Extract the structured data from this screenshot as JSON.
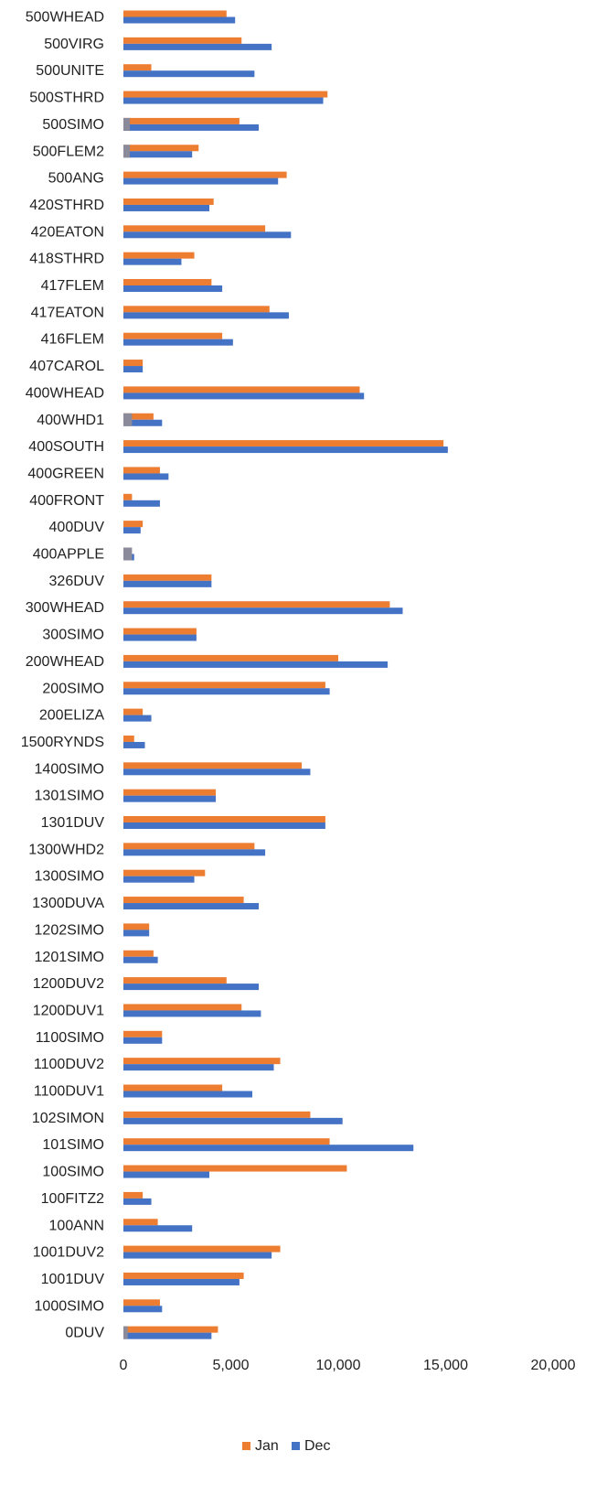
{
  "chart_data": {
    "type": "bar",
    "orientation": "horizontal",
    "title": "",
    "xlabel": "",
    "ylabel": "",
    "xlim": [
      0,
      20000
    ],
    "x_ticks": [
      0,
      5000,
      10000,
      15000,
      20000
    ],
    "x_tick_labels": [
      "0",
      "5,000",
      "10,000",
      "15,000",
      "20,000"
    ],
    "grid": false,
    "legend_position": "bottom",
    "categories": [
      "500WHEAD",
      "500VIRG",
      "500UNITE",
      "500STHRD",
      "500SIMO",
      "500FLEM2",
      "500ANG",
      "420STHRD",
      "420EATON",
      "418STHRD",
      "417FLEM",
      "417EATON",
      "416FLEM",
      "407CAROL",
      "400WHEAD",
      "400WHD1",
      "400SOUTH",
      "400GREEN",
      "400FRONT",
      "400DUV",
      "400APPLE",
      "326DUV",
      "300WHEAD",
      "300SIMO",
      "200WHEAD",
      "200SIMO",
      "200ELIZA",
      "1500RYNDS",
      "1400SIMO",
      "1301SIMO",
      "1301DUV",
      "1300WHD2",
      "1300SIMO",
      "1300DUVA",
      "1202SIMO",
      "1201SIMO",
      "1200DUV2",
      "1200DUV1",
      "1100SIMO",
      "1100DUV2",
      "1100DUV1",
      "102SIMON",
      "101SIMO",
      "100SIMO",
      "100FITZ2",
      "100ANN",
      "1001DUV2",
      "1001DUV",
      "1000SIMO",
      "0DUV"
    ],
    "series": [
      {
        "name": "Jan",
        "color": "#ED7D31",
        "values": [
          4800,
          5500,
          1300,
          9500,
          5400,
          3500,
          7600,
          4200,
          6600,
          3300,
          4100,
          6800,
          4600,
          900,
          11000,
          1400,
          14900,
          1700,
          400,
          900,
          0,
          4100,
          12400,
          3400,
          10000,
          9400,
          900,
          500,
          8300,
          4300,
          9400,
          6100,
          3800,
          5600,
          1200,
          1400,
          4800,
          5500,
          1800,
          7300,
          4600,
          8700,
          9600,
          10400,
          900,
          1600,
          7300,
          5600,
          1700,
          4400
        ]
      },
      {
        "name": "Dec",
        "color": "#4472C4",
        "values": [
          5200,
          6900,
          6100,
          9300,
          6300,
          3200,
          7200,
          4000,
          7800,
          2700,
          4600,
          7700,
          5100,
          900,
          11200,
          1800,
          15100,
          2100,
          1700,
          800,
          500,
          4100,
          13000,
          3400,
          12300,
          9600,
          1300,
          1000,
          8700,
          4300,
          9400,
          6600,
          3300,
          6300,
          1200,
          1600,
          6300,
          6400,
          1800,
          7000,
          6000,
          10200,
          13500,
          4000,
          1300,
          3200,
          6900,
          5400,
          1800,
          4100
        ]
      },
      {
        "color": "#8A8A9A",
        "values": [
          0,
          0,
          0,
          0,
          300,
          300,
          0,
          0,
          0,
          0,
          0,
          0,
          0,
          0,
          0,
          400,
          0,
          0,
          0,
          0,
          400,
          0,
          0,
          0,
          0,
          0,
          0,
          0,
          0,
          0,
          0,
          0,
          0,
          0,
          0,
          0,
          0,
          0,
          0,
          0,
          0,
          0,
          0,
          0,
          0,
          0,
          0,
          0,
          0,
          200
        ]
      }
    ]
  }
}
